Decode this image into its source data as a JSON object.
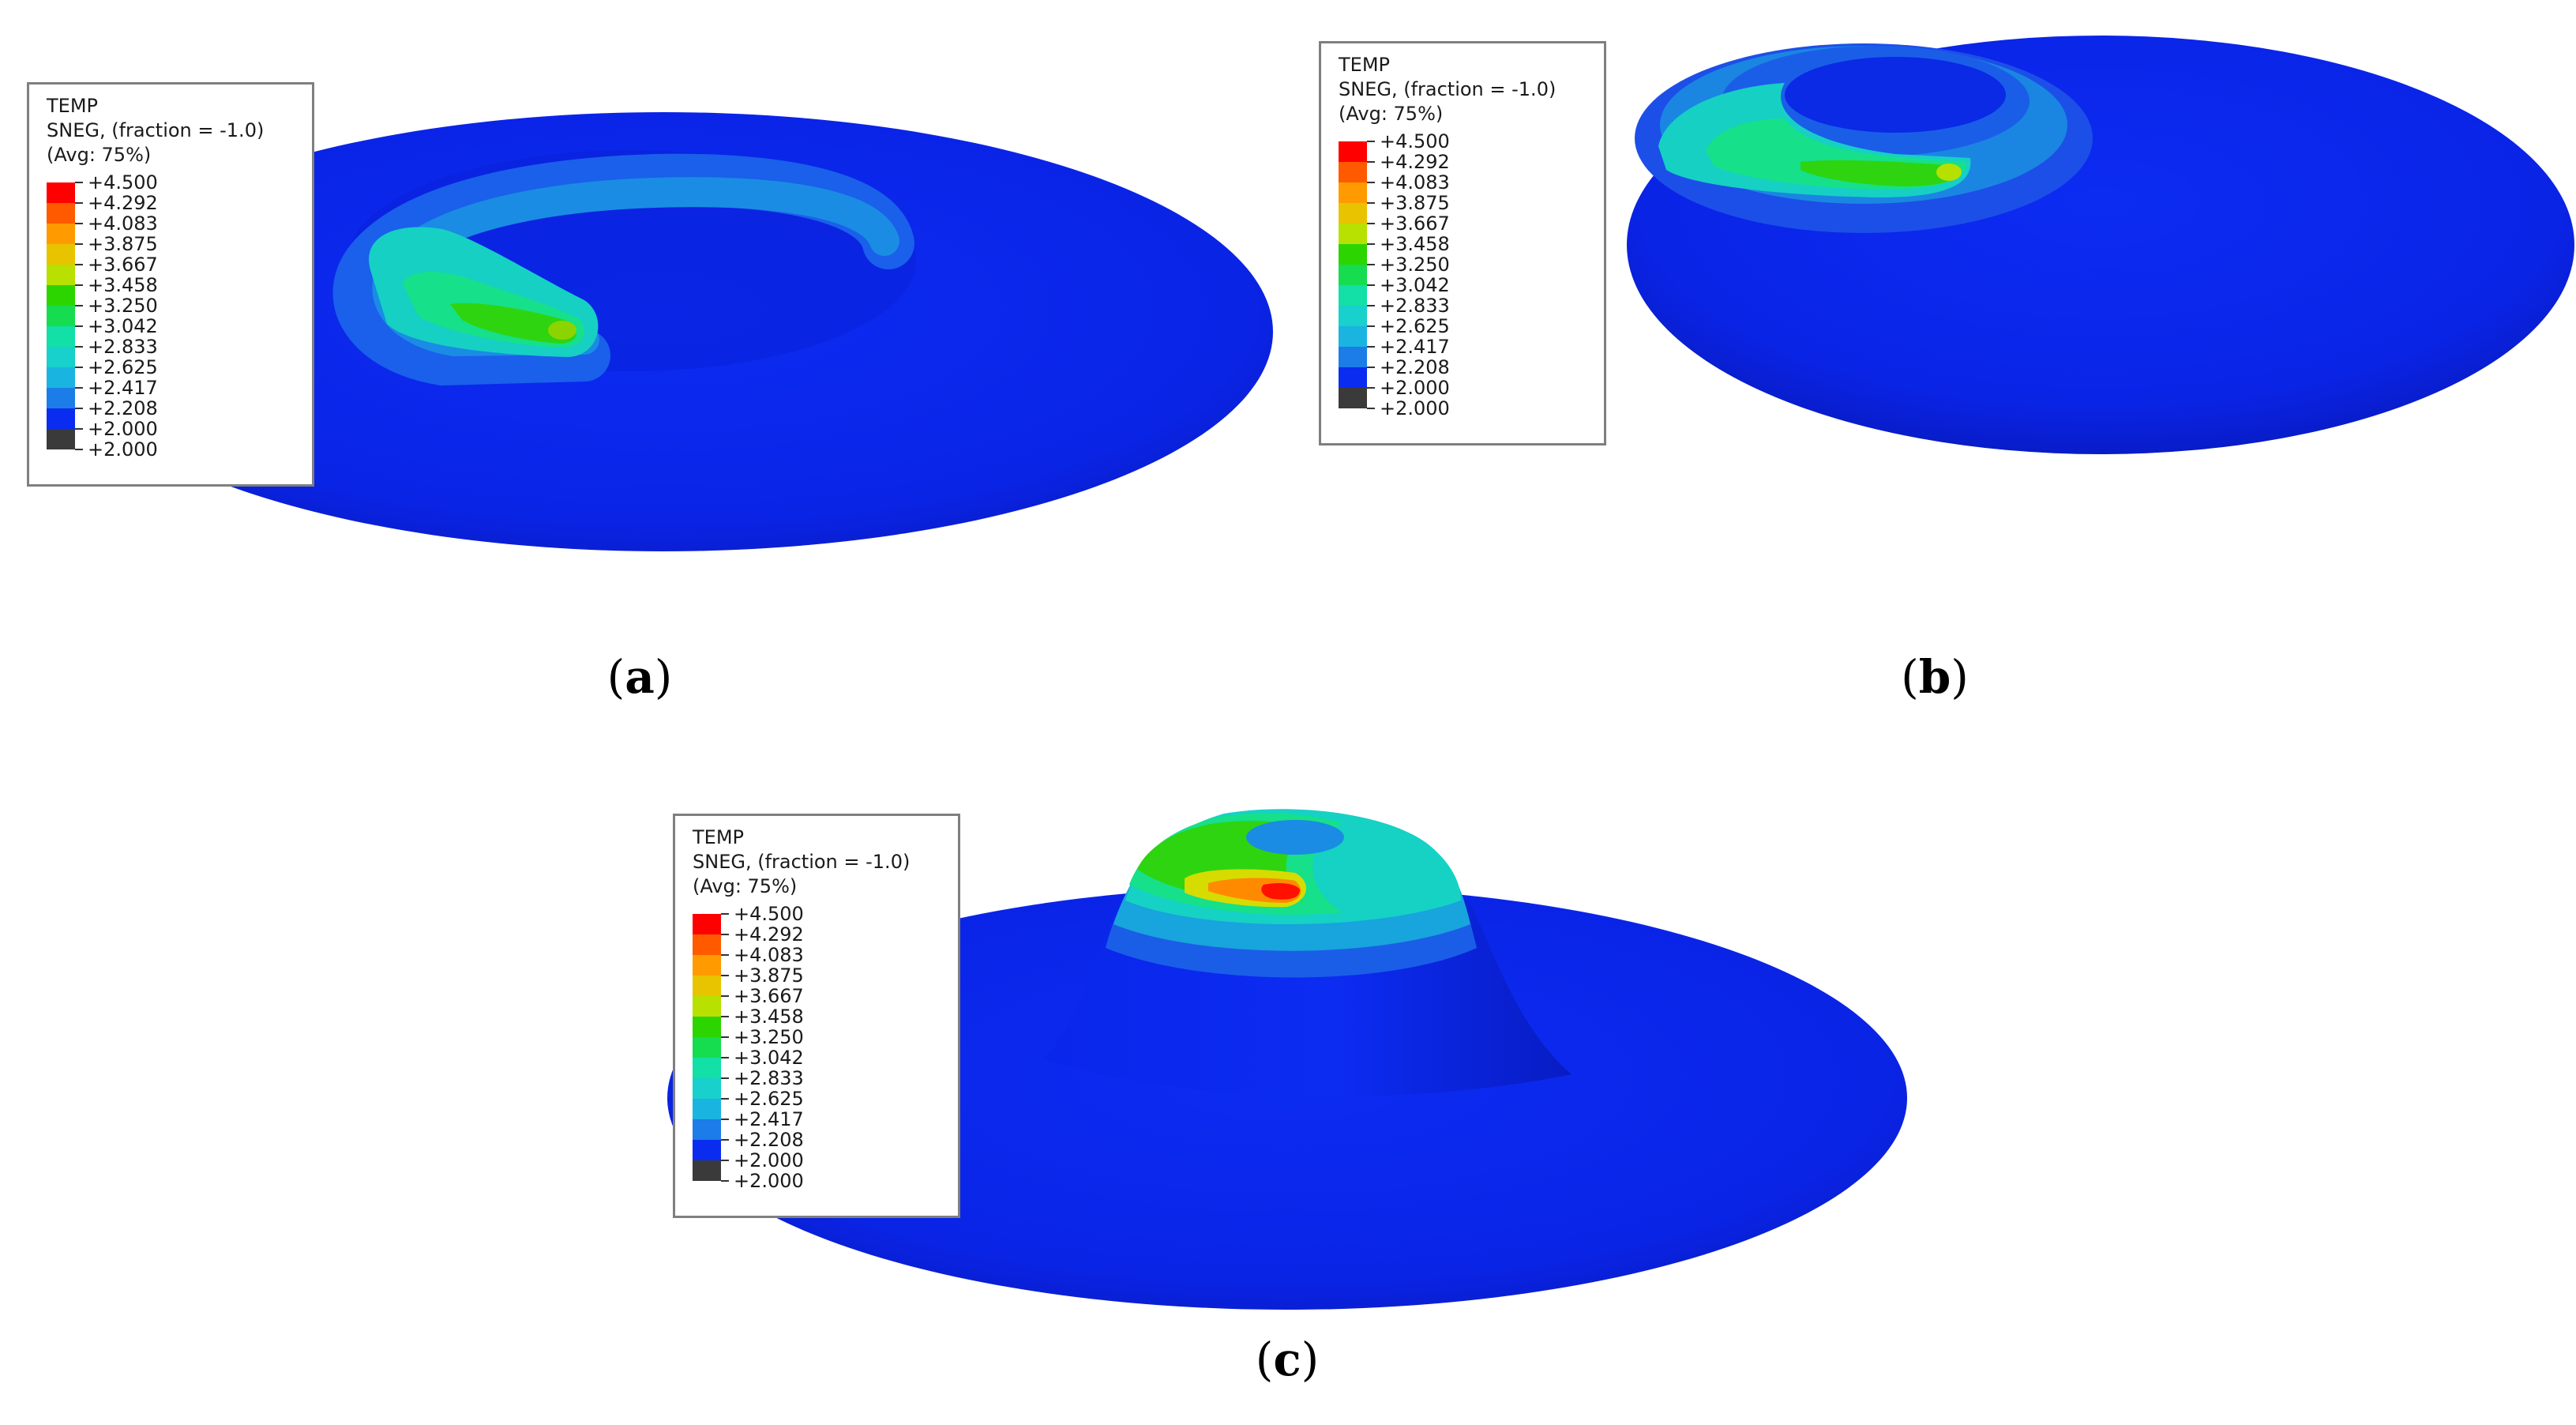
{
  "legend": {
    "line1": "TEMP",
    "line2": "SNEG, (fraction = -1.0)",
    "line3": "(Avg: 75%)",
    "values": [
      "+4.500",
      "+4.292",
      "+4.083",
      "+3.875",
      "+3.667",
      "+3.458",
      "+3.250",
      "+3.042",
      "+2.833",
      "+2.625",
      "+2.417",
      "+2.208",
      "+2.000",
      "+2.000"
    ],
    "colors": [
      "#ff0000",
      "#ff5a00",
      "#ff9a00",
      "#e8c400",
      "#b8e000",
      "#2cd400",
      "#16dc50",
      "#12e0a6",
      "#18d0cc",
      "#1ab4e0",
      "#1c7ce8",
      "#0a2cf0",
      "#3a3a3a"
    ]
  },
  "palette": {
    "plate": "#0a24e8",
    "plate_edge": "#0a1fc8",
    "shade_dark": "#081bb8",
    "level_2417": "#1a64ea",
    "level_2625": "#18a6dc",
    "level_2833": "#15d2c4",
    "level_3042": "#16e08a",
    "level_3458": "#2ed410",
    "level_3875": "#d6dc00",
    "level_4083": "#ff8a00",
    "level_4500": "#ff1000"
  },
  "panels": [
    {
      "id": "a",
      "caption": "a"
    },
    {
      "id": "b",
      "caption": "b"
    },
    {
      "id": "c",
      "caption": "c"
    }
  ]
}
